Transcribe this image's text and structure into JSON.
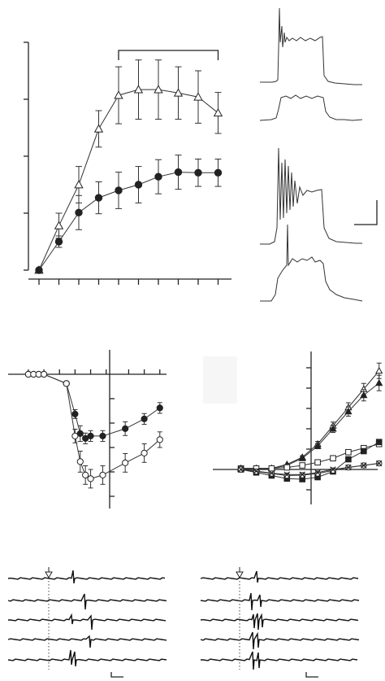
{
  "chart_data": [
    {
      "type": "line",
      "panel": "top-left",
      "x": [
        0,
        1,
        2,
        3,
        4,
        5,
        6,
        7,
        8,
        9
      ],
      "ylim": [
        0,
        4
      ],
      "bracket": true,
      "series": [
        {
          "marker": "open-triangle",
          "values": [
            0,
            0.78,
            1.5,
            2.48,
            3.07,
            3.17,
            3.17,
            3.11,
            3.04,
            2.76
          ],
          "errors": [
            0,
            0.22,
            0.32,
            0.32,
            0.5,
            0.52,
            0.52,
            0.46,
            0.46,
            0.36
          ]
        },
        {
          "marker": "filled-circle",
          "values": [
            0,
            0.5,
            1.01,
            1.27,
            1.4,
            1.5,
            1.64,
            1.72,
            1.71,
            1.71
          ],
          "errors": [
            0,
            0.1,
            0.3,
            0.28,
            0.32,
            0.32,
            0.3,
            0.3,
            0.24,
            0.24
          ]
        }
      ]
    },
    {
      "type": "line",
      "panel": "middle-left",
      "series": [
        {
          "marker": "filled-circle",
          "x": [
            -4.7,
            -4.4,
            -4.1,
            -3.8,
            -2.5,
            -2.0,
            -1.7,
            -1.4,
            -1.1,
            -0.4,
            0.9,
            2.0,
            2.9
          ],
          "values": [
            0,
            0,
            0,
            0,
            -0.38,
            -1.63,
            -2.43,
            -2.63,
            -2.53,
            -2.53,
            -2.23,
            -1.83,
            -1.38
          ],
          "errors": [
            0,
            0,
            0,
            0,
            0.08,
            0.18,
            0.32,
            0.22,
            0.22,
            0.22,
            0.28,
            0.22,
            0.22
          ]
        },
        {
          "marker": "open-circle",
          "x": [
            -4.7,
            -4.4,
            -4.1,
            -3.8,
            -2.5,
            -2.0,
            -1.7,
            -1.4,
            -1.1,
            -0.4,
            0.9,
            2.0,
            2.9
          ],
          "values": [
            0,
            0,
            0,
            0,
            -0.38,
            -2.53,
            -3.58,
            -4.13,
            -4.28,
            -4.13,
            -3.63,
            -3.23,
            -2.68
          ],
          "errors": [
            0,
            0,
            0,
            0,
            0.08,
            0.28,
            0.43,
            0.38,
            0.38,
            0.38,
            0.38,
            0.38,
            0.32
          ]
        }
      ]
    },
    {
      "type": "line",
      "panel": "middle-right",
      "x": [
        -3.4,
        -2.5,
        -1.6,
        -0.7,
        0.2,
        1.1,
        2.0,
        2.9,
        3.8,
        4.7
      ],
      "series": [
        {
          "marker": "open-triangle",
          "values": [
            0.05,
            0.05,
            0.05,
            0.25,
            0.6,
            1.25,
            2.15,
            3.05,
            3.95,
            4.85
          ],
          "errors": [
            0,
            0,
            0,
            0,
            0.08,
            0.13,
            0.18,
            0.23,
            0.28,
            0.38
          ]
        },
        {
          "marker": "filled-triangle",
          "values": [
            0.05,
            0.05,
            0.05,
            0.2,
            0.55,
            1.15,
            2.0,
            2.85,
            3.65,
            4.25
          ],
          "errors": [
            0,
            0,
            0,
            0,
            0.08,
            0.13,
            0.18,
            0.23,
            0.28,
            0.38
          ]
        },
        {
          "marker": "open-square",
          "values": [
            0.05,
            0.05,
            0.05,
            0.1,
            0.2,
            0.35,
            0.55,
            0.85,
            1.05,
            1.25
          ],
          "errors": [
            0,
            0,
            0,
            0,
            0.05,
            0.05,
            0.07,
            0.07,
            0.09,
            0.1
          ]
        },
        {
          "marker": "filled-square",
          "values": [
            0,
            -0.15,
            -0.3,
            -0.45,
            -0.48,
            -0.38,
            -0.1,
            0.5,
            0.9,
            1.35
          ],
          "errors": [
            0,
            0,
            0,
            0.05,
            0.05,
            0.05,
            0.07,
            0.07,
            0.09,
            0.1
          ]
        },
        {
          "marker": "open-circle",
          "values": [
            0,
            -0.1,
            -0.2,
            -0.3,
            -0.28,
            -0.2,
            -0.05,
            0.1,
            0.2,
            0.3
          ],
          "errors": [
            0,
            0,
            0,
            0,
            0,
            0,
            0,
            0,
            0,
            0
          ]
        },
        {
          "marker": "cross",
          "values": [
            0,
            -0.08,
            -0.18,
            -0.25,
            -0.25,
            -0.15,
            0,
            0.1,
            0.2,
            0.3
          ],
          "errors": [
            0,
            0,
            0,
            0,
            0,
            0,
            0,
            0,
            0,
            0
          ]
        }
      ]
    }
  ],
  "traces": {
    "top_right": [
      "upper",
      "lower"
    ],
    "mid_right": [
      "upper",
      "lower"
    ]
  },
  "rasters": {
    "left": {
      "sweeps": 5,
      "arrow": true,
      "dotted_marker": true
    },
    "right": {
      "sweeps": 5,
      "arrow": true,
      "dotted_marker": true
    }
  },
  "scale_bars": [
    "top-right",
    "bottom-left",
    "bottom-right"
  ],
  "colors": {
    "ink": "#222222",
    "background": "#ffffff"
  }
}
